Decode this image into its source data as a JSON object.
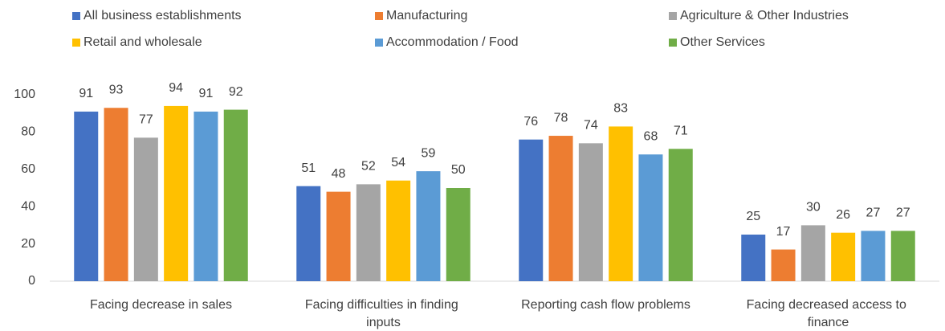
{
  "chart_data": {
    "type": "bar",
    "categories": [
      "Facing decrease in sales",
      "Facing difficulties in finding inputs",
      "Reporting cash flow problems",
      "Facing decreased access to finance"
    ],
    "series": [
      {
        "name": "All business establishments",
        "color": "#4472c4",
        "values": [
          91,
          51,
          76,
          25
        ]
      },
      {
        "name": "Manufacturing",
        "color": "#ed7d31",
        "values": [
          93,
          48,
          78,
          17
        ]
      },
      {
        "name": "Agriculture & Other Industries",
        "color": "#a5a5a5",
        "values": [
          77,
          52,
          74,
          30
        ]
      },
      {
        "name": "Retail and wholesale",
        "color": "#ffc000",
        "values": [
          94,
          54,
          83,
          26
        ]
      },
      {
        "name": "Accommodation / Food",
        "color": "#5b9bd5",
        "values": [
          91,
          59,
          68,
          27
        ]
      },
      {
        "name": "Other Services",
        "color": "#70ad47",
        "values": [
          92,
          50,
          71,
          27
        ]
      }
    ],
    "ylim": [
      0,
      100
    ],
    "yticks": [
      0,
      20,
      40,
      60,
      80,
      100
    ],
    "grid": false,
    "legend": "top"
  }
}
